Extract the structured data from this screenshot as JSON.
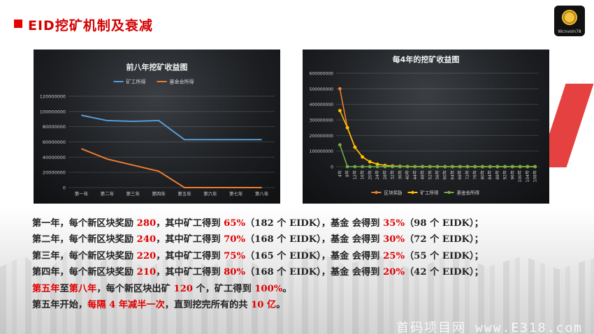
{
  "page": {
    "title": "EID挖矿机制及衰减",
    "logo_text": "Wcnvoin78",
    "watermark": "首码项目网 www.E318.com"
  },
  "chart_data": [
    {
      "type": "line",
      "title": "前八年挖矿收益图",
      "categories": [
        "第一年",
        "第二年",
        "第三年",
        "第四年",
        "第五年",
        "第六年",
        "第七年",
        "第八年"
      ],
      "series": [
        {
          "name": "矿工所得",
          "color": "#5b9bd5",
          "values": [
            95000000,
            88000000,
            87000000,
            88000000,
            63000000,
            63000000,
            63000000,
            63000000
          ]
        },
        {
          "name": "基金会所得",
          "color": "#ed7d31",
          "values": [
            51000000,
            37500000,
            29500000,
            21500000,
            0,
            0,
            0,
            0
          ]
        }
      ],
      "yticks": [
        "0",
        "20000000",
        "40000000",
        "60000000",
        "80000000",
        "100000000",
        "120000000"
      ],
      "ylim": [
        0,
        120000000
      ],
      "grid": true,
      "legend": "top"
    },
    {
      "type": "line",
      "title": "每4年的挖矿收益图",
      "categories": [
        "4年",
        "8年",
        "12年",
        "16年",
        "20年",
        "24年",
        "28年",
        "32年",
        "36年",
        "40年",
        "44年",
        "48年",
        "52年",
        "56年",
        "60年",
        "64年",
        "68年",
        "72年",
        "76年",
        "80年",
        "84年",
        "88年",
        "92年",
        "96年",
        "100年",
        "104年",
        "108年"
      ],
      "series": [
        {
          "name": "区块奖励",
          "color": "#ed7d31",
          "values": [
            500000000,
            250000000,
            125000000,
            62500000,
            31250000,
            15625000,
            7812500,
            3906250,
            1953125,
            976562,
            488281,
            244140,
            122070,
            61035,
            30517,
            15258,
            7629,
            3814,
            1907,
            953,
            476,
            238,
            119,
            59,
            29,
            14,
            7
          ]
        },
        {
          "name": "矿工所得",
          "color": "#ffc000",
          "values": [
            360000000,
            250000000,
            125000000,
            62500000,
            31250000,
            15625000,
            7812500,
            3906250,
            1953125,
            976562,
            488281,
            244140,
            122070,
            61035,
            30517,
            15258,
            7629,
            3814,
            1907,
            953,
            476,
            238,
            119,
            59,
            29,
            14,
            7
          ]
        },
        {
          "name": "基金会所得",
          "color": "#70ad47",
          "values": [
            140000000,
            0,
            0,
            0,
            0,
            0,
            0,
            0,
            0,
            0,
            0,
            0,
            0,
            0,
            0,
            0,
            0,
            0,
            0,
            0,
            0,
            0,
            0,
            0,
            0,
            0,
            0
          ]
        }
      ],
      "yticks": [
        "0",
        "100000000",
        "200000000",
        "300000000",
        "400000000",
        "500000000",
        "600000000"
      ],
      "ylim": [
        0,
        600000000
      ],
      "grid": true,
      "legend": "bottom"
    }
  ],
  "text_lines": [
    [
      {
        "t": "第一年，每个新区块奖励 "
      },
      {
        "t": "280",
        "red": true
      },
      {
        "t": "，其中矿工得到 "
      },
      {
        "t": "65%",
        "red": true
      },
      {
        "t": "（182 个 EIDK），基金 会得到 "
      },
      {
        "t": "35%",
        "red": true
      },
      {
        "t": "（98 个 EIDK）；"
      }
    ],
    [
      {
        "t": "第二年，每个新区块奖励 "
      },
      {
        "t": "240",
        "red": true
      },
      {
        "t": "，其中矿工得到 "
      },
      {
        "t": "70%",
        "red": true
      },
      {
        "t": "（168 个 EIDK），基金 会得到 "
      },
      {
        "t": "30%",
        "red": true
      },
      {
        "t": "（72 个 EIDK）；"
      }
    ],
    [
      {
        "t": "第三年，每个新区块奖励 "
      },
      {
        "t": "220",
        "red": true
      },
      {
        "t": "，其中矿工得到 "
      },
      {
        "t": "75%",
        "red": true
      },
      {
        "t": "（165 个 EIDK），基金 会得到 "
      },
      {
        "t": "25%",
        "red": true
      },
      {
        "t": "（55 个 EIDK）；"
      }
    ],
    [
      {
        "t": "第四年，每个新区块奖励 "
      },
      {
        "t": "210",
        "red": true
      },
      {
        "t": "，其中矿工得到 "
      },
      {
        "t": "80%",
        "red": true
      },
      {
        "t": "（168 个 EIDK），基金 会得到 "
      },
      {
        "t": "20%",
        "red": true
      },
      {
        "t": "（42 个 EIDK）；"
      }
    ],
    [
      {
        "t": "第五年",
        "red": true
      },
      {
        "t": "至"
      },
      {
        "t": "第八年",
        "red": true
      },
      {
        "t": "，每个新区块出矿 "
      },
      {
        "t": "120",
        "red": true
      },
      {
        "t": " 个，矿工得到 "
      },
      {
        "t": "100%",
        "red": true
      },
      {
        "t": "。"
      }
    ],
    [
      {
        "t": "第五年开始，"
      },
      {
        "t": "每隔 4 年减半一次",
        "red": true
      },
      {
        "t": "，直到挖完所有的共 "
      },
      {
        "t": "10 亿",
        "red": true
      },
      {
        "t": "。"
      }
    ]
  ]
}
